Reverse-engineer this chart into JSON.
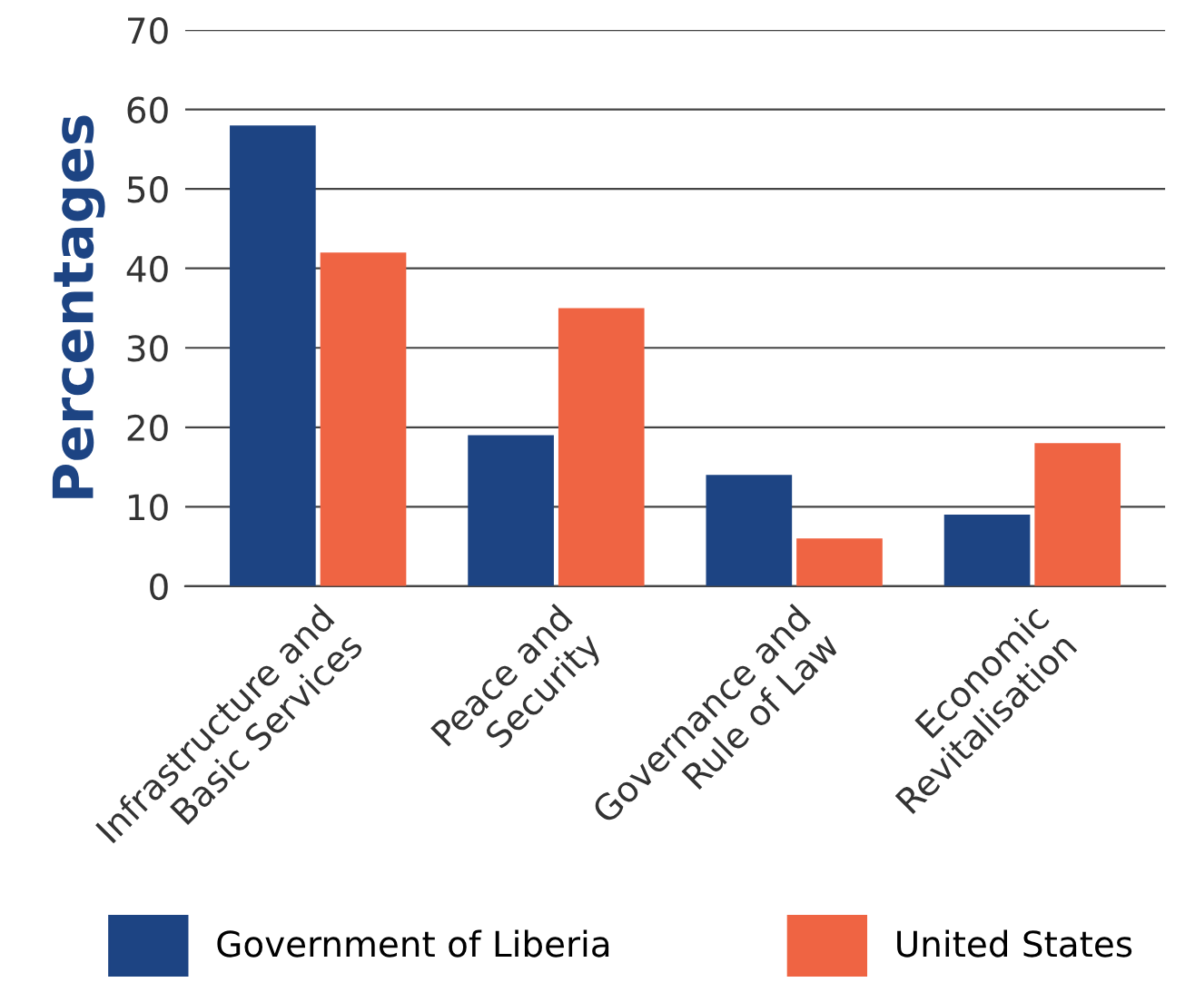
{
  "chart_data": {
    "type": "bar",
    "ylabel": "Percentages",
    "categories": [
      "Infrastructure and\nBasic Services",
      "Peace and\nSecurity",
      "Governance and\nRule of Law",
      "Economic\nRevitalisation"
    ],
    "series": [
      {
        "name": "Government of Liberia",
        "color": "#1d4483",
        "values": [
          58,
          19,
          14,
          9
        ]
      },
      {
        "name": "United States",
        "color": "#ef6443",
        "values": [
          42,
          35,
          6,
          18
        ]
      }
    ],
    "ylim": [
      0,
      70
    ],
    "yticks": [
      0,
      10,
      20,
      30,
      40,
      50,
      60,
      70
    ],
    "grid": "y",
    "legend": "bottom"
  }
}
